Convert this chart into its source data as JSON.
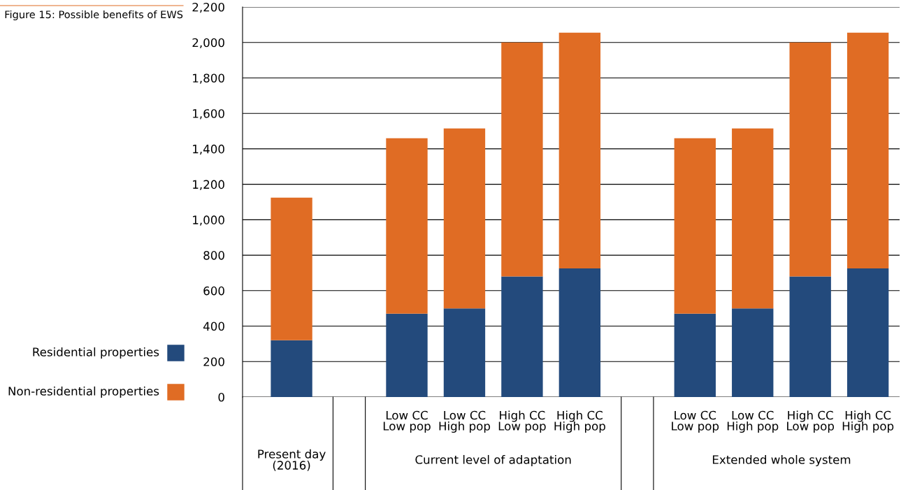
{
  "chart_data": {
    "type": "bar",
    "stacked": true,
    "title": "Figure 15: Possible benefits of EWS",
    "categories": [
      null,
      null,
      "Low CC\nLow pop",
      "Low CC\nHigh pop",
      "High CC\nLow pop",
      "High CC\nHigh pop",
      null,
      "Low CC\nLow pop",
      "Low CC\nHigh pop",
      "High CC\nLow pop",
      "High CC\nHigh pop"
    ],
    "series": [
      {
        "name": "Residential properties",
        "color": "#234a7c",
        "values": [
          320,
          null,
          470,
          500,
          680,
          725,
          null,
          470,
          500,
          680,
          725
        ]
      },
      {
        "name": "Non-residential properties",
        "color": "#e06c24",
        "values": [
          805,
          null,
          990,
          1015,
          1320,
          1330,
          null,
          990,
          1015,
          1320,
          1330
        ]
      }
    ],
    "annotations": [
      "Present day\n(2016)",
      "Current level of adaptation",
      "Extended whole system"
    ],
    "ylim": [
      0,
      2200
    ],
    "yticks": [
      0,
      200,
      400,
      600,
      800,
      {
        "value": 1000,
        "label": "1,000"
      },
      {
        "value": 1200,
        "label": "1,200"
      },
      {
        "value": 1400,
        "label": "1,400"
      },
      {
        "value": 1600,
        "label": "1,600"
      },
      {
        "value": 1800,
        "label": "1,800"
      },
      {
        "value": 2000,
        "label": "2,000"
      },
      {
        "value": 2200,
        "label": "2,200"
      }
    ],
    "grid": "y",
    "legend": "bottom left"
  }
}
